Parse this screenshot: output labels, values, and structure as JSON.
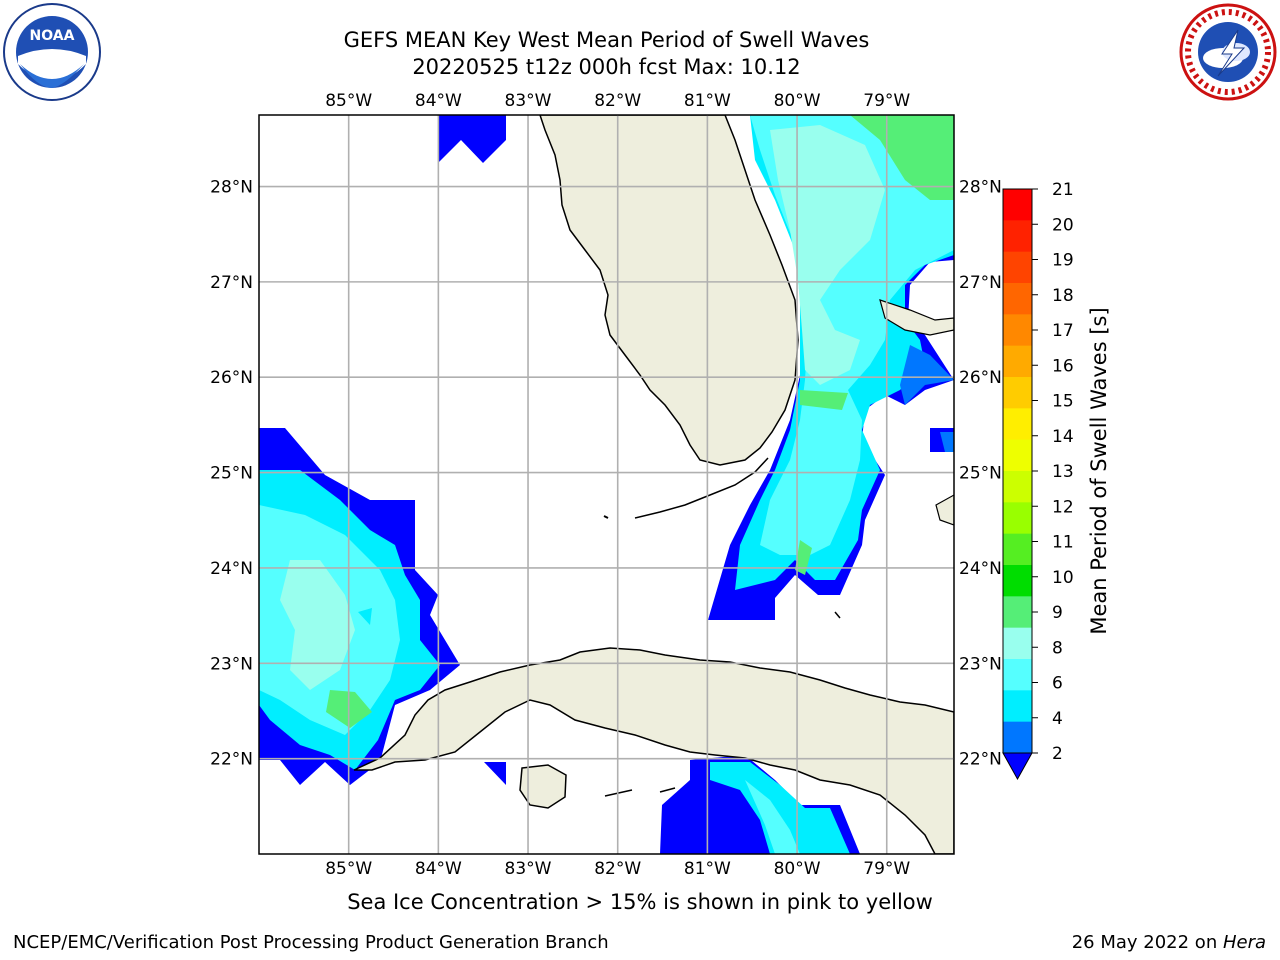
{
  "header": {
    "title_line1": "GEFS MEAN Key West Mean Period of Swell Waves",
    "title_line2": "20220525 t12z 000h fcst   Max: 10.12"
  },
  "logos": {
    "left": {
      "name": "noaa-logo",
      "text": "NOAA"
    },
    "right": {
      "name": "nws-logo"
    }
  },
  "map": {
    "lon_ticks": [
      "85°W",
      "84°W",
      "83°W",
      "82°W",
      "81°W",
      "80°W",
      "79°W"
    ],
    "lat_ticks": [
      "28°N",
      "27°N",
      "26°N",
      "25°N",
      "24°N",
      "23°N",
      "22°N"
    ],
    "extent": {
      "lon_min": -86.0,
      "lon_max": -78.25,
      "lat_min": 21.0,
      "lat_max": 28.75
    }
  },
  "colorbar": {
    "label": "Mean Period of Swell Waves [s]",
    "ticks": [
      "21",
      "20",
      "19",
      "18",
      "17",
      "16",
      "15",
      "14",
      "13",
      "12",
      "11",
      "10",
      "9",
      "8",
      "6",
      "4",
      "2"
    ],
    "colors": [
      "#ff0000",
      "#ff2200",
      "#ff4400",
      "#ff6600",
      "#ff8800",
      "#ffaa00",
      "#ffcc00",
      "#ffee00",
      "#eeff00",
      "#ccff00",
      "#99ff00",
      "#55ee22",
      "#00dd00",
      "#55ee77",
      "#99ffee",
      "#55ffff",
      "#00eeff",
      "#0077ff"
    ],
    "under_color": "#0000ff"
  },
  "captions": {
    "sea_ice_note": "Sea Ice Concentration > 15% is shown in pink to yellow",
    "footer_left": "NCEP/EMC/Verification Post Processing Product Generation Branch",
    "footer_date": "26 May 2022 on ",
    "footer_host": "Hera"
  }
}
